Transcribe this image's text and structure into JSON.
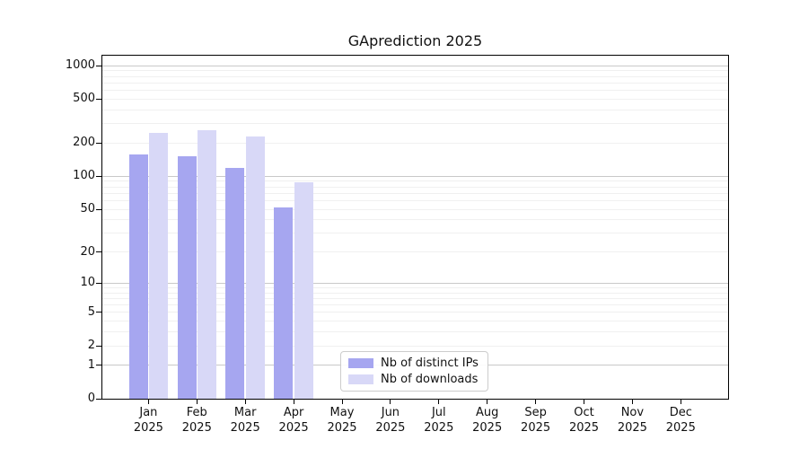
{
  "chart_data": {
    "type": "bar",
    "title": "GAprediction 2025",
    "y_scale": "log1p",
    "ylim": [
      0,
      1240
    ],
    "y_ticks": [
      0,
      1,
      2,
      5,
      10,
      20,
      50,
      100,
      200,
      500,
      1000
    ],
    "y_major_gridlines": [
      1,
      10,
      100,
      1000
    ],
    "y_minor_gridlines": [
      2,
      3,
      4,
      5,
      6,
      7,
      8,
      9,
      20,
      30,
      40,
      50,
      60,
      70,
      80,
      90,
      200,
      300,
      400,
      500,
      600,
      700,
      800,
      900
    ],
    "categories": [
      "Jan",
      "Feb",
      "Mar",
      "Apr",
      "May",
      "Jun",
      "Jul",
      "Aug",
      "Sep",
      "Oct",
      "Nov",
      "Dec"
    ],
    "year_label": "2025",
    "series": [
      {
        "name": "Nb of distinct IPs",
        "color": "#a6a6f0",
        "values": [
          158,
          152,
          120,
          52,
          null,
          null,
          null,
          null,
          null,
          null,
          null,
          null
        ]
      },
      {
        "name": "Nb of downloads",
        "color": "#d8d8f7",
        "values": [
          250,
          261,
          228,
          88,
          null,
          null,
          null,
          null,
          null,
          null,
          null,
          null
        ]
      }
    ],
    "legend_position": "bottom-center",
    "grid": "on"
  },
  "colors": {
    "background": "#ffffff",
    "axis": "#000000",
    "major_grid": "#c9c9c9",
    "minor_grid": "#f0f0f0",
    "text": "#111111"
  }
}
